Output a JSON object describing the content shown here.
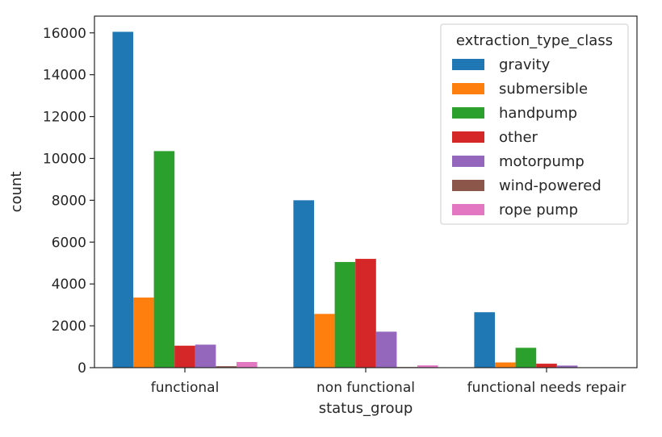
{
  "chart_data": {
    "type": "bar",
    "categories": [
      "functional",
      "non functional",
      "functional needs repair"
    ],
    "series": [
      {
        "name": "gravity",
        "color": "#1f77b4",
        "values": [
          16050,
          8000,
          2650
        ]
      },
      {
        "name": "submersible",
        "color": "#ff7f0e",
        "values": [
          3350,
          2570,
          250
        ]
      },
      {
        "name": "handpump",
        "color": "#2ca02c",
        "values": [
          10350,
          5050,
          950
        ]
      },
      {
        "name": "other",
        "color": "#d62728",
        "values": [
          1050,
          5200,
          190
        ]
      },
      {
        "name": "motorpump",
        "color": "#9467bd",
        "values": [
          1100,
          1720,
          100
        ]
      },
      {
        "name": "wind-powered",
        "color": "#8c564b",
        "values": [
          70,
          30,
          10
        ]
      },
      {
        "name": "rope pump",
        "color": "#e377c2",
        "values": [
          270,
          110,
          20
        ]
      }
    ],
    "yticks": [
      0,
      2000,
      4000,
      6000,
      8000,
      10000,
      12000,
      14000,
      16000
    ],
    "ylim": [
      0,
      16800
    ],
    "xlabel": "status_group",
    "ylabel": "count",
    "legend_title": "extraction_type_class",
    "legend_position": "top-right",
    "grid": false
  }
}
